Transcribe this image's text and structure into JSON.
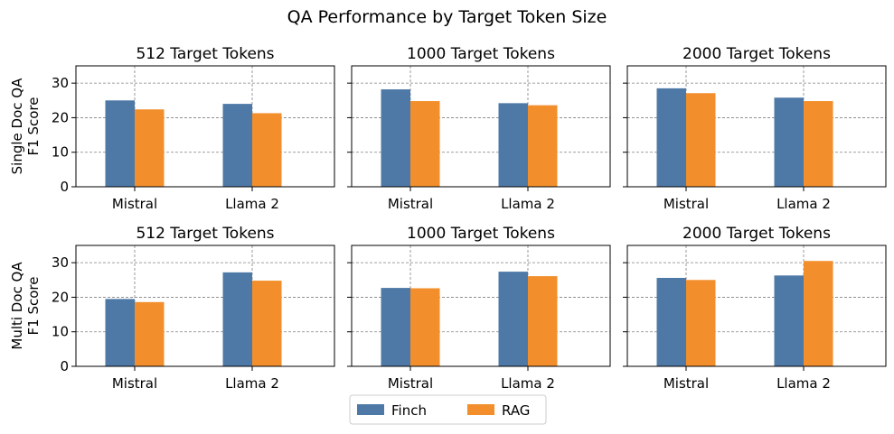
{
  "figure": {
    "title": "QA Performance by Target Token Size"
  },
  "chart_data": [
    {
      "type": "bar",
      "title": "512 Target Tokens",
      "row_label": "Single Doc QA",
      "ylabel": "F1 Score",
      "categories": [
        "Mistral",
        "Llama 2"
      ],
      "series": [
        {
          "name": "Finch",
          "values": [
            25.0,
            24.0
          ]
        },
        {
          "name": "RAG",
          "values": [
            22.4,
            21.3
          ]
        }
      ],
      "ylim": [
        0,
        35
      ],
      "yticks": [
        0,
        10,
        20,
        30
      ],
      "grid": true
    },
    {
      "type": "bar",
      "title": "1000 Target Tokens",
      "row_label": "Single Doc QA",
      "ylabel": "F1 Score",
      "categories": [
        "Mistral",
        "Llama 2"
      ],
      "series": [
        {
          "name": "Finch",
          "values": [
            28.2,
            24.2
          ]
        },
        {
          "name": "RAG",
          "values": [
            24.8,
            23.6
          ]
        }
      ],
      "ylim": [
        0,
        35
      ],
      "yticks": [
        0,
        10,
        20,
        30
      ],
      "grid": true
    },
    {
      "type": "bar",
      "title": "2000 Target Tokens",
      "row_label": "Single Doc QA",
      "ylabel": "F1 Score",
      "categories": [
        "Mistral",
        "Llama 2"
      ],
      "series": [
        {
          "name": "Finch",
          "values": [
            28.5,
            25.8
          ]
        },
        {
          "name": "RAG",
          "values": [
            27.1,
            24.8
          ]
        }
      ],
      "ylim": [
        0,
        35
      ],
      "yticks": [
        0,
        10,
        20,
        30
      ],
      "grid": true
    },
    {
      "type": "bar",
      "title": "512 Target Tokens",
      "row_label": "Multi Doc QA",
      "ylabel": "F1 Score",
      "categories": [
        "Mistral",
        "Llama 2"
      ],
      "series": [
        {
          "name": "Finch",
          "values": [
            19.5,
            27.2
          ]
        },
        {
          "name": "RAG",
          "values": [
            18.6,
            24.8
          ]
        }
      ],
      "ylim": [
        0,
        35
      ],
      "yticks": [
        0,
        10,
        20,
        30
      ],
      "grid": true
    },
    {
      "type": "bar",
      "title": "1000 Target Tokens",
      "row_label": "Multi Doc QA",
      "ylabel": "F1 Score",
      "categories": [
        "Mistral",
        "Llama 2"
      ],
      "series": [
        {
          "name": "Finch",
          "values": [
            22.7,
            27.4
          ]
        },
        {
          "name": "RAG",
          "values": [
            22.6,
            26.1
          ]
        }
      ],
      "ylim": [
        0,
        35
      ],
      "yticks": [
        0,
        10,
        20,
        30
      ],
      "grid": true
    },
    {
      "type": "bar",
      "title": "2000 Target Tokens",
      "row_label": "Multi Doc QA",
      "ylabel": "F1 Score",
      "categories": [
        "Mistral",
        "Llama 2"
      ],
      "series": [
        {
          "name": "Finch",
          "values": [
            25.6,
            26.3
          ]
        },
        {
          "name": "RAG",
          "values": [
            25.0,
            30.5
          ]
        }
      ],
      "ylim": [
        0,
        35
      ],
      "yticks": [
        0,
        10,
        20,
        30
      ],
      "grid": true
    }
  ],
  "legend": {
    "placement": "bottom-center",
    "entries": [
      {
        "label": "Finch",
        "color": "#4e79a7"
      },
      {
        "label": "RAG",
        "color": "#f28e2b"
      }
    ]
  }
}
